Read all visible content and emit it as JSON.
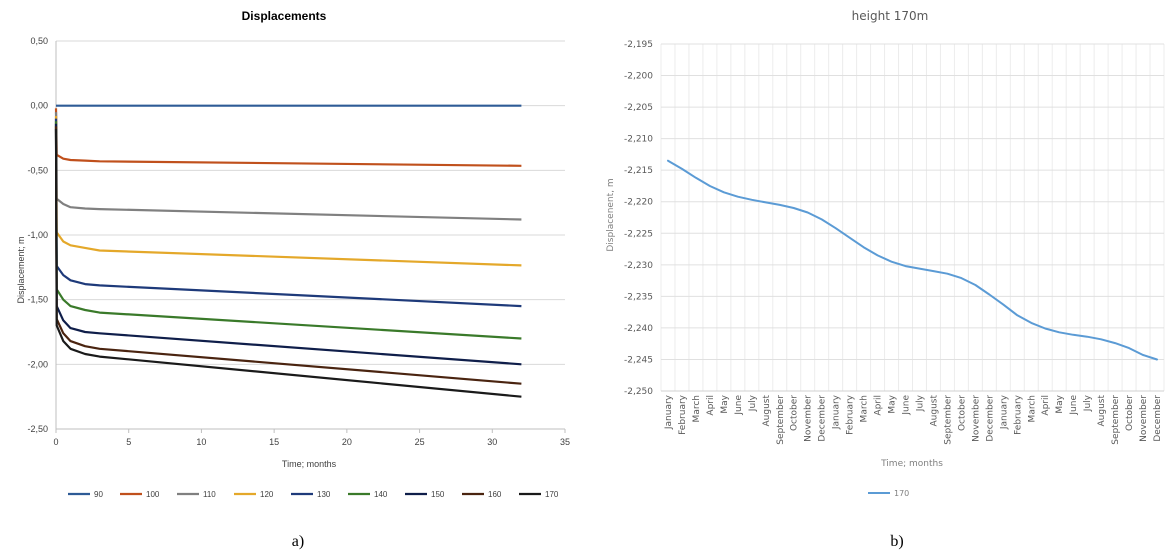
{
  "chart_data": [
    {
      "type": "line",
      "title": "Displacements",
      "xlabel": "Time; months",
      "ylabel": "Displacement; m",
      "xlim": [
        0,
        35
      ],
      "ylim": [
        -2.5,
        0.5
      ],
      "x_ticks": [
        "0",
        "5",
        "10",
        "15",
        "20",
        "25",
        "30",
        "35"
      ],
      "y_ticks": [
        "0,50",
        "0,00",
        "-0,50",
        "-1,00",
        "-1,50",
        "-2,00",
        "-2,50"
      ],
      "legend_position": "bottom",
      "grid": "horizontal",
      "caption": "a)",
      "series": [
        {
          "name": "90",
          "color": "#2e5b96",
          "points": [
            [
              0,
              0
            ],
            [
              0.1,
              0
            ],
            [
              32,
              0
            ]
          ]
        },
        {
          "name": "100",
          "color": "#c0501c",
          "points": [
            [
              0,
              -0.02
            ],
            [
              0.05,
              -0.38
            ],
            [
              0.5,
              -0.41
            ],
            [
              1,
              -0.42
            ],
            [
              2,
              -0.425
            ],
            [
              3,
              -0.43
            ],
            [
              32,
              -0.465
            ]
          ]
        },
        {
          "name": "110",
          "color": "#808080",
          "points": [
            [
              0,
              -0.05
            ],
            [
              0.05,
              -0.72
            ],
            [
              0.5,
              -0.76
            ],
            [
              1,
              -0.785
            ],
            [
              2,
              -0.795
            ],
            [
              3,
              -0.8
            ],
            [
              32,
              -0.88
            ]
          ]
        },
        {
          "name": "120",
          "color": "#e4a82a",
          "points": [
            [
              0,
              -0.08
            ],
            [
              0.05,
              -0.98
            ],
            [
              0.5,
              -1.05
            ],
            [
              1,
              -1.08
            ],
            [
              2,
              -1.1
            ],
            [
              3,
              -1.12
            ],
            [
              32,
              -1.235
            ]
          ]
        },
        {
          "name": "130",
          "color": "#1e3a7a",
          "points": [
            [
              0,
              -0.1
            ],
            [
              0.05,
              -1.24
            ],
            [
              0.5,
              -1.31
            ],
            [
              1,
              -1.35
            ],
            [
              2,
              -1.38
            ],
            [
              3,
              -1.39
            ],
            [
              32,
              -1.55
            ]
          ]
        },
        {
          "name": "140",
          "color": "#3a7a2a",
          "points": [
            [
              0,
              -0.12
            ],
            [
              0.05,
              -1.42
            ],
            [
              0.5,
              -1.5
            ],
            [
              1,
              -1.55
            ],
            [
              2,
              -1.58
            ],
            [
              3,
              -1.6
            ],
            [
              32,
              -1.8
            ]
          ]
        },
        {
          "name": "150",
          "color": "#0f1e4a",
          "points": [
            [
              0,
              -0.14
            ],
            [
              0.05,
              -1.55
            ],
            [
              0.5,
              -1.66
            ],
            [
              1,
              -1.72
            ],
            [
              2,
              -1.75
            ],
            [
              3,
              -1.76
            ],
            [
              32,
              -2.0
            ]
          ]
        },
        {
          "name": "160",
          "color": "#4a2410",
          "points": [
            [
              0,
              -0.16
            ],
            [
              0.05,
              -1.65
            ],
            [
              0.5,
              -1.76
            ],
            [
              1,
              -1.82
            ],
            [
              2,
              -1.86
            ],
            [
              3,
              -1.88
            ],
            [
              32,
              -2.15
            ]
          ]
        },
        {
          "name": "170",
          "color": "#1a1a1a",
          "points": [
            [
              0,
              -0.18
            ],
            [
              0.05,
              -1.7
            ],
            [
              0.5,
              -1.82
            ],
            [
              1,
              -1.88
            ],
            [
              2,
              -1.92
            ],
            [
              3,
              -1.94
            ],
            [
              32,
              -2.25
            ]
          ]
        }
      ]
    },
    {
      "type": "line",
      "title": "height 170m",
      "xlabel": "Time; months",
      "ylabel": "Displacement, m",
      "ylabel_display": "Displacenent, m",
      "ylim": [
        -2.25,
        -2.195
      ],
      "y_ticks": [
        "-2,195",
        "-2,200",
        "-2,205",
        "-2,210",
        "-2,215",
        "-2,220",
        "-2,225",
        "-2,230",
        "-2,235",
        "-2,240",
        "-2,245",
        "-2,250"
      ],
      "categories": [
        "January",
        "February",
        "March",
        "April",
        "May",
        "June",
        "July",
        "August",
        "September",
        "October",
        "November",
        "December",
        "January",
        "February",
        "March",
        "April",
        "May",
        "June",
        "July",
        "August",
        "September",
        "October",
        "November",
        "December",
        "January",
        "February",
        "March",
        "April",
        "May",
        "June",
        "July",
        "August",
        "September",
        "October",
        "November",
        "December"
      ],
      "legend_position": "bottom",
      "grid": "both",
      "caption": "b)",
      "series": [
        {
          "name": "170",
          "color": "#5b9bd5",
          "values": [
            -2.2135,
            -2.2148,
            -2.2162,
            -2.2175,
            -2.2185,
            -2.2192,
            -2.2197,
            -2.2201,
            -2.2205,
            -2.221,
            -2.2217,
            -2.2228,
            -2.2242,
            -2.2257,
            -2.2272,
            -2.2285,
            -2.2295,
            -2.2302,
            -2.2306,
            -2.231,
            -2.2314,
            -2.2321,
            -2.2332,
            -2.2347,
            -2.2363,
            -2.238,
            -2.2392,
            -2.2401,
            -2.2407,
            -2.2411,
            -2.2414,
            -2.2418,
            -2.2424,
            -2.2432,
            -2.2443,
            -2.245
          ]
        }
      ]
    }
  ]
}
